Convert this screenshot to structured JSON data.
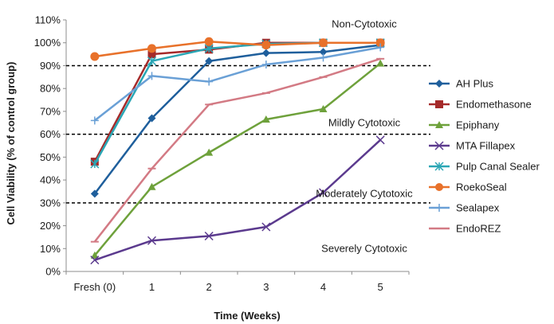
{
  "chart_data": {
    "type": "line",
    "xlabel": "Time (Weeks)",
    "ylabel": "Cell Viability (% of control group)",
    "categories": [
      "Fresh (0)",
      "1",
      "2",
      "3",
      "4",
      "5"
    ],
    "ylim": [
      0,
      110
    ],
    "yticks": [
      0,
      10,
      20,
      30,
      40,
      50,
      60,
      70,
      80,
      90,
      100,
      110
    ],
    "ytick_labels": [
      "0%",
      "10%",
      "20%",
      "30%",
      "40%",
      "50%",
      "60%",
      "70%",
      "80%",
      "90%",
      "100%",
      "110%"
    ],
    "grid": false,
    "legend_position": "right",
    "thresholds": [
      90,
      60,
      30
    ],
    "zone_labels": [
      {
        "text": "Non-Cytotoxic",
        "y": 108
      },
      {
        "text": "Mildly Cytotoxic",
        "y": 65
      },
      {
        "text": "Moderately Cytotoxic",
        "y": 34
      },
      {
        "text": "Severely Cytotoxic",
        "y": 10
      }
    ],
    "series": [
      {
        "name": "AH Plus",
        "color": "#1f5f9c",
        "marker": "diamond",
        "values": [
          34,
          67,
          92,
          95.5,
          96,
          99
        ]
      },
      {
        "name": "Endomethasone",
        "color": "#a52a2a",
        "marker": "square",
        "values": [
          48,
          95,
          97,
          100,
          100,
          100
        ]
      },
      {
        "name": "Epiphany",
        "color": "#6ea13b",
        "marker": "triangle",
        "values": [
          7,
          37,
          52,
          66.5,
          71,
          91
        ]
      },
      {
        "name": "MTA Fillapex",
        "color": "#5b3a8e",
        "marker": "x",
        "values": [
          5,
          13.5,
          15.5,
          19.5,
          34.5,
          57.5
        ]
      },
      {
        "name": "Pulp Canal Sealer",
        "color": "#2aa6b5",
        "marker": "star",
        "values": [
          47,
          92,
          97.5,
          99.5,
          100,
          100
        ]
      },
      {
        "name": "RoekoSeal",
        "color": "#e8712a",
        "marker": "circle",
        "values": [
          94,
          97.5,
          100.5,
          99,
          100,
          100
        ]
      },
      {
        "name": "Sealapex",
        "color": "#6aa0d6",
        "marker": "plus",
        "values": [
          66,
          85.5,
          83,
          90.5,
          93.5,
          98
        ]
      },
      {
        "name": "EndoREZ",
        "color": "#d37a84",
        "marker": "dash",
        "values": [
          13,
          45,
          73,
          78,
          85,
          93
        ]
      }
    ]
  }
}
